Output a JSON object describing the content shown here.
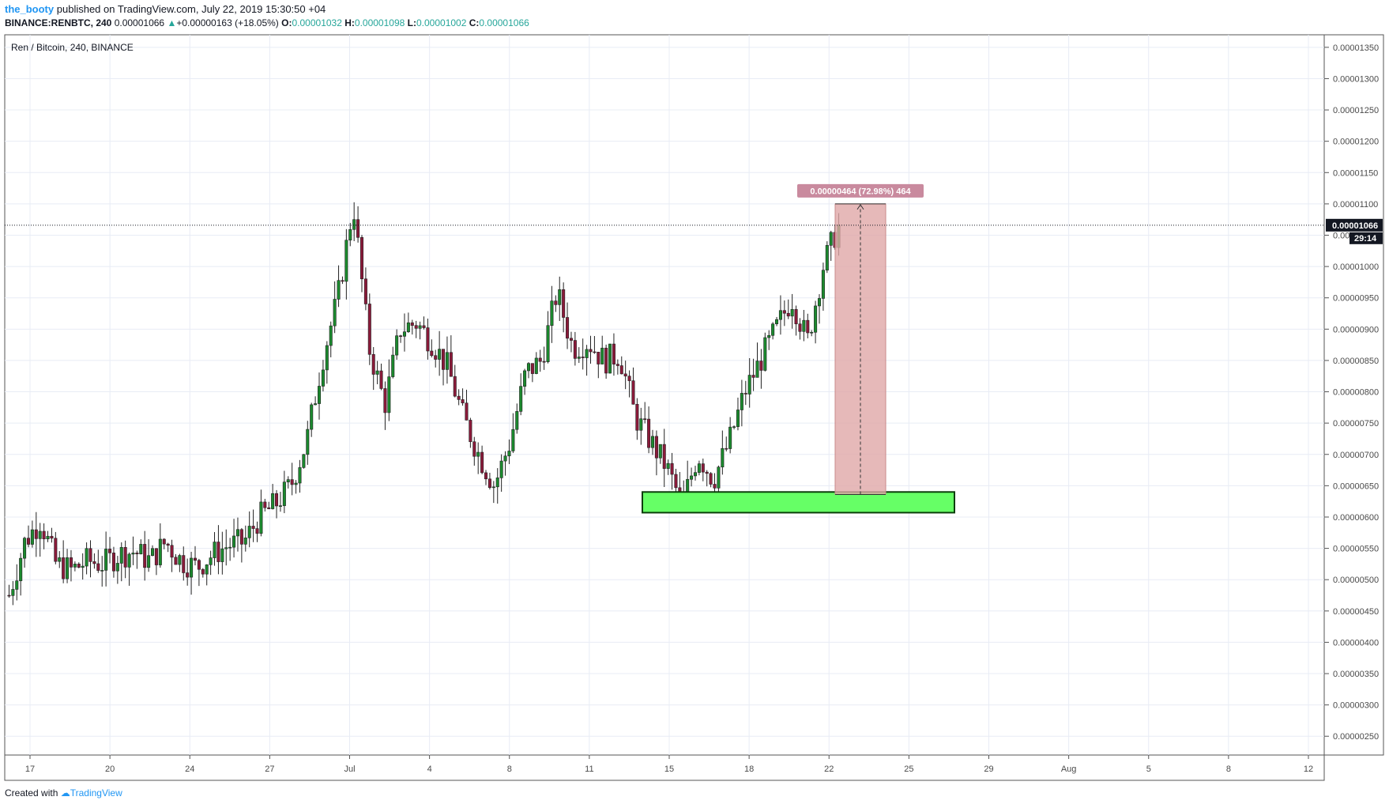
{
  "header": {
    "author": "the_booty",
    "published_text": "published on TradingView.com, July 22, 2019 15:30:50 +04"
  },
  "quote": {
    "symbol": "BINANCE:RENBTC, 240",
    "last": "0.00001066",
    "change": "+0.00000163 (+18.05%)",
    "o_label": "O:",
    "o_value": "0.00001032",
    "h_label": "H:",
    "h_value": "0.00001098",
    "l_label": "L:",
    "l_value": "0.00001002",
    "c_label": "C:",
    "c_value": "0.00001066"
  },
  "chart_title": "Ren / Bitcoin, 240, BINANCE",
  "price_tag": {
    "value": "0.00001066",
    "countdown": "29:14"
  },
  "measure_label": "0.00000464 (72.98%) 464",
  "footer": {
    "created_with": "Created with",
    "brand": "TradingView"
  },
  "colors": {
    "up": "#26a69a",
    "down": "#ef5350",
    "bull_candle": "#1b8a2e",
    "bear_candle": "#8b1a3a",
    "grid": "#e8ecf5",
    "zone_fill": "#66ff66",
    "measure_fill": "#e0a8a8",
    "measure_label_bg": "#c98a9e",
    "accent": "#2196f3"
  },
  "chart_data": {
    "type": "candlestick",
    "title": "Ren / Bitcoin, 240, BINANCE",
    "x_labels": [
      "17",
      "20",
      "24",
      "27",
      "Jul",
      "4",
      "8",
      "11",
      "15",
      "18",
      "22",
      "25",
      "29",
      "Aug",
      "5",
      "8",
      "12"
    ],
    "y_ticks": [
      "0.00001350",
      "0.00001300",
      "0.00001250",
      "0.00001200",
      "0.00001150",
      "0.00001100",
      "0.00001050",
      "0.00001000",
      "0.00000950",
      "0.00000900",
      "0.00000850",
      "0.00000800",
      "0.00000750",
      "0.00000700",
      "0.00000650",
      "0.00000600",
      "0.00000550",
      "0.00000500",
      "0.00000450",
      "0.00000400",
      "0.00000350",
      "0.00000300",
      "0.00000250"
    ],
    "ylim": [
      2.2e-06,
      1.37e-05
    ],
    "last_price": 1.066e-05,
    "series_close_path": [
      [
        0,
        4.75e-06
      ],
      [
        1,
        5.6e-06
      ],
      [
        2,
        5.95e-06
      ],
      [
        3,
        5.25e-06
      ],
      [
        4,
        5.15e-06
      ],
      [
        5,
        5.3e-06
      ],
      [
        6,
        5.25e-06
      ],
      [
        7,
        5.4e-06
      ],
      [
        8,
        5.45e-06
      ],
      [
        9,
        5.3e-06
      ],
      [
        10,
        5.6e-06
      ],
      [
        11,
        5.3e-06
      ],
      [
        12,
        5.2e-06
      ],
      [
        13,
        5.4e-06
      ],
      [
        14,
        5.55e-06
      ],
      [
        15,
        5.6e-06
      ],
      [
        16,
        6e-06
      ],
      [
        17,
        6.2e-06
      ],
      [
        18,
        6.5e-06
      ],
      [
        19,
        7.2e-06
      ],
      [
        20,
        8.5e-06
      ],
      [
        21,
        9.5e-06
      ],
      [
        22,
        1.1e-05
      ],
      [
        23,
        8.7e-06
      ],
      [
        24,
        7.8e-06
      ],
      [
        25,
        9e-06
      ],
      [
        26,
        9.1e-06
      ],
      [
        27,
        8.8e-06
      ],
      [
        28,
        8.4e-06
      ],
      [
        29,
        7.6e-06
      ],
      [
        30,
        7e-06
      ],
      [
        31,
        6.5e-06
      ],
      [
        32,
        7.2e-06
      ],
      [
        33,
        8.3e-06
      ],
      [
        34,
        8.5e-06
      ],
      [
        35,
        9.6e-06
      ],
      [
        36,
        8.7e-06
      ],
      [
        37,
        8.8e-06
      ],
      [
        38,
        8.5e-06
      ],
      [
        39,
        8.6e-06
      ],
      [
        40,
        7.6e-06
      ],
      [
        41,
        7.2e-06
      ],
      [
        42,
        6.8e-06
      ],
      [
        43,
        6.2e-06
      ],
      [
        44,
        7e-06
      ],
      [
        45,
        6.6e-06
      ],
      [
        46,
        7.2e-06
      ],
      [
        47,
        8e-06
      ],
      [
        48,
        8.5e-06
      ],
      [
        49,
        9e-06
      ],
      [
        50,
        9.5e-06
      ],
      [
        51,
        8.8e-06
      ],
      [
        52,
        1e-05
      ],
      [
        53,
        1.066e-05
      ]
    ],
    "support_zone": {
      "low": 6.07e-06,
      "high": 6.4e-06
    },
    "measure": {
      "from": 6.36e-06,
      "to": 1.1e-05,
      "label": "0.00000464 (72.98%) 464"
    }
  }
}
